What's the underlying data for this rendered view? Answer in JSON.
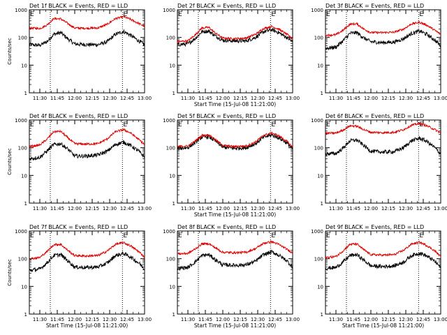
{
  "colors": {
    "events": "#000000",
    "lld": "#dd0000",
    "background": "#ffffff",
    "axes": "#000000"
  },
  "chart_data": [
    {
      "type": "line",
      "title": "Det 1f BLACK = Events, RED = LLD",
      "xlabel": "",
      "ylabel": "Counts/sec",
      "yscale": "log",
      "ylim": [
        1,
        1000
      ],
      "xlim": [
        "11:21:00",
        "13:00:00"
      ],
      "x_tick_labels": [
        "11:30",
        "11:45",
        "12:00",
        "12:15",
        "12:30",
        "12:45",
        "13:00"
      ],
      "y_tick_labels": [
        "1",
        "10",
        "100",
        "1000"
      ],
      "markers": [
        {
          "time": "11:39",
          "label": ""
        },
        {
          "time": "12:41",
          "label": "E"
        }
      ],
      "corner_label": "E",
      "grid": false,
      "series": [
        {
          "name": "Events",
          "color": "#000000",
          "x": [
            "11:21",
            "11:30",
            "11:36",
            "11:42",
            "11:48",
            "11:54",
            "12:00",
            "12:10",
            "12:20",
            "12:28",
            "12:35",
            "12:42",
            "12:48",
            "12:55",
            "13:00"
          ],
          "values": [
            55,
            52,
            70,
            130,
            150,
            90,
            58,
            55,
            55,
            70,
            130,
            165,
            120,
            75,
            55
          ]
        },
        {
          "name": "LLD",
          "color": "#dd0000",
          "x": [
            "11:21",
            "11:30",
            "11:36",
            "11:42",
            "11:48",
            "11:54",
            "12:00",
            "12:10",
            "12:20",
            "12:28",
            "12:35",
            "12:42",
            "12:48",
            "12:55",
            "13:00"
          ],
          "values": [
            220,
            210,
            280,
            480,
            470,
            320,
            220,
            215,
            220,
            300,
            480,
            560,
            450,
            320,
            250
          ]
        }
      ]
    },
    {
      "type": "line",
      "title": "Det 2f BLACK = Events, RED = LLD",
      "xlabel": "Start Time (15-Jul-08 11:21:00)",
      "ylabel": "",
      "yscale": "log",
      "ylim": [
        1,
        1000
      ],
      "xlim": [
        "11:21:00",
        "13:00:00"
      ],
      "x_tick_labels": [
        "11:30",
        "11:45",
        "12:00",
        "12:15",
        "12:30",
        "12:45",
        "13:00"
      ],
      "y_tick_labels": [
        "1",
        "10",
        "100",
        "1000"
      ],
      "markers": [
        {
          "time": "11:39",
          "label": ""
        },
        {
          "time": "12:41",
          "label": "E"
        }
      ],
      "corner_label": "E",
      "grid": false,
      "series": [
        {
          "name": "Events",
          "color": "#000000",
          "x": [
            "11:21",
            "11:30",
            "11:36",
            "11:42",
            "11:48",
            "11:54",
            "12:00",
            "12:10",
            "12:20",
            "12:28",
            "12:35",
            "12:42",
            "12:48",
            "12:55",
            "13:00"
          ],
          "values": [
            55,
            58,
            90,
            160,
            170,
            110,
            80,
            75,
            75,
            100,
            160,
            190,
            150,
            100,
            70
          ]
        },
        {
          "name": "LLD",
          "color": "#dd0000",
          "x": [
            "11:21",
            "11:30",
            "11:36",
            "11:42",
            "11:48",
            "11:54",
            "12:00",
            "12:10",
            "12:20",
            "12:28",
            "12:35",
            "12:42",
            "12:48",
            "12:55",
            "13:00"
          ],
          "values": [
            70,
            75,
            120,
            220,
            230,
            140,
            95,
            90,
            95,
            130,
            210,
            250,
            200,
            130,
            90
          ]
        }
      ]
    },
    {
      "type": "line",
      "title": "Det 3f BLACK = Events, RED = LLD",
      "xlabel": "",
      "ylabel": "",
      "yscale": "log",
      "ylim": [
        1,
        1000
      ],
      "xlim": [
        "11:21:00",
        "13:00:00"
      ],
      "x_tick_labels": [
        "11:30",
        "11:45",
        "12:00",
        "12:15",
        "12:30",
        "12:45",
        "13:00"
      ],
      "y_tick_labels": [
        "1",
        "10",
        "100",
        "1000"
      ],
      "markers": [
        {
          "time": "11:39",
          "label": ""
        },
        {
          "time": "12:41",
          "label": "E"
        }
      ],
      "corner_label": "E",
      "grid": false,
      "series": [
        {
          "name": "Events",
          "color": "#000000",
          "x": [
            "11:21",
            "11:30",
            "11:36",
            "11:42",
            "11:48",
            "11:54",
            "12:00",
            "12:10",
            "12:20",
            "12:28",
            "12:35",
            "12:42",
            "12:48",
            "12:55",
            "13:00"
          ],
          "values": [
            40,
            45,
            75,
            140,
            150,
            95,
            70,
            65,
            68,
            90,
            140,
            170,
            130,
            80,
            50
          ]
        },
        {
          "name": "LLD",
          "color": "#dd0000",
          "x": [
            "11:21",
            "11:30",
            "11:36",
            "11:42",
            "11:48",
            "11:54",
            "12:00",
            "12:10",
            "12:20",
            "12:28",
            "12:35",
            "12:42",
            "12:48",
            "12:55",
            "13:00"
          ],
          "values": [
            120,
            125,
            180,
            300,
            310,
            200,
            150,
            150,
            155,
            200,
            310,
            350,
            280,
            180,
            130
          ]
        }
      ]
    },
    {
      "type": "line",
      "title": "Det 4f BLACK = Events, RED = LLD",
      "xlabel": "",
      "ylabel": "Counts/sec",
      "yscale": "log",
      "ylim": [
        1,
        1000
      ],
      "xlim": [
        "11:21:00",
        "13:00:00"
      ],
      "x_tick_labels": [
        "11:30",
        "11:45",
        "12:00",
        "12:15",
        "12:30",
        "12:45",
        "13:00"
      ],
      "y_tick_labels": [
        "1",
        "10",
        "100",
        "1000"
      ],
      "markers": [
        {
          "time": "11:39",
          "label": ""
        },
        {
          "time": "12:41",
          "label": "E"
        }
      ],
      "corner_label": "E",
      "grid": false,
      "series": [
        {
          "name": "Events",
          "color": "#000000",
          "x": [
            "11:21",
            "11:30",
            "11:36",
            "11:42",
            "11:48",
            "11:54",
            "12:00",
            "12:10",
            "12:20",
            "12:28",
            "12:35",
            "12:42",
            "12:48",
            "12:55",
            "13:00"
          ],
          "values": [
            40,
            45,
            75,
            130,
            140,
            90,
            50,
            50,
            55,
            75,
            130,
            160,
            120,
            75,
            45
          ]
        },
        {
          "name": "LLD",
          "color": "#dd0000",
          "x": [
            "11:21",
            "11:30",
            "11:36",
            "11:42",
            "11:48",
            "11:54",
            "12:00",
            "12:10",
            "12:20",
            "12:28",
            "12:35",
            "12:42",
            "12:48",
            "12:55",
            "13:00"
          ],
          "values": [
            110,
            125,
            200,
            380,
            390,
            230,
            140,
            135,
            140,
            210,
            380,
            450,
            340,
            200,
            130
          ]
        }
      ]
    },
    {
      "type": "line",
      "title": "Det 5f BLACK = Events, RED = LLD",
      "xlabel": "Start Time (15-Jul-08 11:21:00)",
      "ylabel": "",
      "yscale": "log",
      "ylim": [
        1,
        1000
      ],
      "xlim": [
        "11:21:00",
        "13:00:00"
      ],
      "x_tick_labels": [
        "11:30",
        "11:45",
        "12:00",
        "12:15",
        "12:30",
        "12:45",
        "13:00"
      ],
      "y_tick_labels": [
        "1",
        "10",
        "100",
        "1000"
      ],
      "markers": [
        {
          "time": "11:39",
          "label": ""
        },
        {
          "time": "12:41",
          "label": "E"
        }
      ],
      "corner_label": "E",
      "grid": false,
      "series": [
        {
          "name": "Events",
          "color": "#000000",
          "x": [
            "11:21",
            "11:30",
            "11:36",
            "11:42",
            "11:48",
            "11:54",
            "12:00",
            "12:10",
            "12:20",
            "12:28",
            "12:35",
            "12:42",
            "12:48",
            "12:55",
            "13:00"
          ],
          "values": [
            95,
            100,
            150,
            240,
            250,
            170,
            105,
            95,
            100,
            140,
            240,
            290,
            230,
            150,
            90
          ]
        },
        {
          "name": "LLD",
          "color": "#dd0000",
          "x": [
            "11:21",
            "11:30",
            "11:36",
            "11:42",
            "11:48",
            "11:54",
            "12:00",
            "12:10",
            "12:20",
            "12:28",
            "12:35",
            "12:42",
            "12:48",
            "12:55",
            "13:00"
          ],
          "values": [
            110,
            115,
            170,
            280,
            290,
            190,
            120,
            110,
            115,
            160,
            280,
            340,
            270,
            170,
            105
          ]
        }
      ]
    },
    {
      "type": "line",
      "title": "Det 6f BLACK = Events, RED = LLD",
      "xlabel": "",
      "ylabel": "",
      "yscale": "log",
      "ylim": [
        1,
        1000
      ],
      "xlim": [
        "11:21:00",
        "13:00:00"
      ],
      "x_tick_labels": [
        "11:30",
        "11:45",
        "12:00",
        "12:15",
        "12:30",
        "12:45",
        "13:00"
      ],
      "y_tick_labels": [
        "1",
        "10",
        "100",
        "1000"
      ],
      "markers": [
        {
          "time": "11:39",
          "label": ""
        },
        {
          "time": "12:41",
          "label": "E"
        }
      ],
      "corner_label": "E",
      "grid": false,
      "series": [
        {
          "name": "Events",
          "color": "#000000",
          "x": [
            "11:21",
            "11:30",
            "11:36",
            "11:42",
            "11:48",
            "11:54",
            "12:00",
            "12:10",
            "12:20",
            "12:28",
            "12:35",
            "12:42",
            "12:48",
            "12:55",
            "13:00"
          ],
          "values": [
            60,
            62,
            95,
            180,
            190,
            120,
            75,
            70,
            72,
            100,
            180,
            220,
            170,
            100,
            60
          ]
        },
        {
          "name": "LLD",
          "color": "#dd0000",
          "x": [
            "11:21",
            "11:30",
            "11:36",
            "11:42",
            "11:48",
            "11:54",
            "12:00",
            "12:10",
            "12:20",
            "12:28",
            "12:35",
            "12:42",
            "12:48",
            "12:55",
            "13:00"
          ],
          "values": [
            330,
            340,
            430,
            620,
            600,
            450,
            360,
            350,
            360,
            450,
            650,
            750,
            620,
            450,
            340
          ]
        }
      ]
    },
    {
      "type": "line",
      "title": "Det 7f BLACK = Events, RED = LLD",
      "xlabel": "Start Time (15-Jul-08 11:21:00)",
      "ylabel": "Counts/sec",
      "yscale": "log",
      "ylim": [
        1,
        1000
      ],
      "xlim": [
        "11:21:00",
        "13:00:00"
      ],
      "x_tick_labels": [
        "11:30",
        "11:45",
        "12:00",
        "12:15",
        "12:30",
        "12:45",
        "13:00"
      ],
      "y_tick_labels": [
        "1",
        "10",
        "100",
        "1000"
      ],
      "markers": [
        {
          "time": "11:39",
          "label": ""
        },
        {
          "time": "12:41",
          "label": "E"
        }
      ],
      "corner_label": "E",
      "grid": false,
      "series": [
        {
          "name": "Events",
          "color": "#000000",
          "x": [
            "11:21",
            "11:30",
            "11:36",
            "11:42",
            "11:48",
            "11:54",
            "12:00",
            "12:10",
            "12:20",
            "12:28",
            "12:35",
            "12:42",
            "12:48",
            "12:55",
            "13:00"
          ],
          "values": [
            38,
            42,
            70,
            130,
            140,
            85,
            50,
            48,
            50,
            70,
            130,
            155,
            115,
            70,
            42
          ]
        },
        {
          "name": "LLD",
          "color": "#dd0000",
          "x": [
            "11:21",
            "11:30",
            "11:36",
            "11:42",
            "11:48",
            "11:54",
            "12:00",
            "12:10",
            "12:20",
            "12:28",
            "12:35",
            "12:42",
            "12:48",
            "12:55",
            "13:00"
          ],
          "values": [
            100,
            110,
            180,
            320,
            330,
            200,
            130,
            125,
            130,
            190,
            330,
            380,
            290,
            180,
            115
          ]
        }
      ]
    },
    {
      "type": "line",
      "title": "Det 8f BLACK = Events, RED = LLD",
      "xlabel": "Start Time (15-Jul-08 11:21:00)",
      "ylabel": "",
      "yscale": "log",
      "ylim": [
        1,
        1000
      ],
      "xlim": [
        "11:21:00",
        "13:00:00"
      ],
      "x_tick_labels": [
        "11:30",
        "11:45",
        "12:00",
        "12:15",
        "12:30",
        "12:45",
        "13:00"
      ],
      "y_tick_labels": [
        "1",
        "10",
        "100",
        "1000"
      ],
      "markers": [
        {
          "time": "11:39",
          "label": ""
        },
        {
          "time": "12:41",
          "label": "E"
        }
      ],
      "corner_label": "E",
      "grid": false,
      "series": [
        {
          "name": "Events",
          "color": "#000000",
          "x": [
            "11:21",
            "11:30",
            "11:36",
            "11:42",
            "11:48",
            "11:54",
            "12:00",
            "12:10",
            "12:20",
            "12:28",
            "12:35",
            "12:42",
            "12:48",
            "12:55",
            "13:00"
          ],
          "values": [
            45,
            48,
            75,
            130,
            140,
            90,
            60,
            58,
            60,
            80,
            140,
            175,
            135,
            85,
            50
          ]
        },
        {
          "name": "LLD",
          "color": "#dd0000",
          "x": [
            "11:21",
            "11:30",
            "11:36",
            "11:42",
            "11:48",
            "11:54",
            "12:00",
            "12:10",
            "12:20",
            "12:28",
            "12:35",
            "12:42",
            "12:48",
            "12:55",
            "13:00"
          ],
          "values": [
            150,
            155,
            220,
            340,
            350,
            240,
            170,
            165,
            170,
            230,
            360,
            410,
            330,
            220,
            160
          ]
        }
      ]
    },
    {
      "type": "line",
      "title": "Det 9f BLACK = Events, RED = LLD",
      "xlabel": "Start Time (15-Jul-08 11:21:00)",
      "ylabel": "",
      "yscale": "log",
      "ylim": [
        1,
        1000
      ],
      "xlim": [
        "11:21:00",
        "13:00:00"
      ],
      "x_tick_labels": [
        "11:30",
        "11:45",
        "12:00",
        "12:15",
        "12:30",
        "12:45",
        "13:00"
      ],
      "y_tick_labels": [
        "1",
        "10",
        "100",
        "1000"
      ],
      "markers": [
        {
          "time": "11:39",
          "label": ""
        },
        {
          "time": "12:41",
          "label": "E"
        }
      ],
      "corner_label": "E",
      "grid": false,
      "series": [
        {
          "name": "Events",
          "color": "#000000",
          "x": [
            "11:21",
            "11:30",
            "11:36",
            "11:42",
            "11:48",
            "11:54",
            "12:00",
            "12:10",
            "12:20",
            "12:28",
            "12:35",
            "12:42",
            "12:48",
            "12:55",
            "13:00"
          ],
          "values": [
            45,
            48,
            75,
            130,
            140,
            88,
            55,
            52,
            55,
            75,
            130,
            160,
            125,
            80,
            48
          ]
        },
        {
          "name": "LLD",
          "color": "#dd0000",
          "x": [
            "11:21",
            "11:30",
            "11:36",
            "11:42",
            "11:48",
            "11:54",
            "12:00",
            "12:10",
            "12:20",
            "12:28",
            "12:35",
            "12:42",
            "12:48",
            "12:55",
            "13:00"
          ],
          "values": [
            110,
            120,
            190,
            330,
            340,
            210,
            140,
            135,
            140,
            200,
            340,
            390,
            300,
            190,
            120
          ]
        }
      ]
    }
  ]
}
